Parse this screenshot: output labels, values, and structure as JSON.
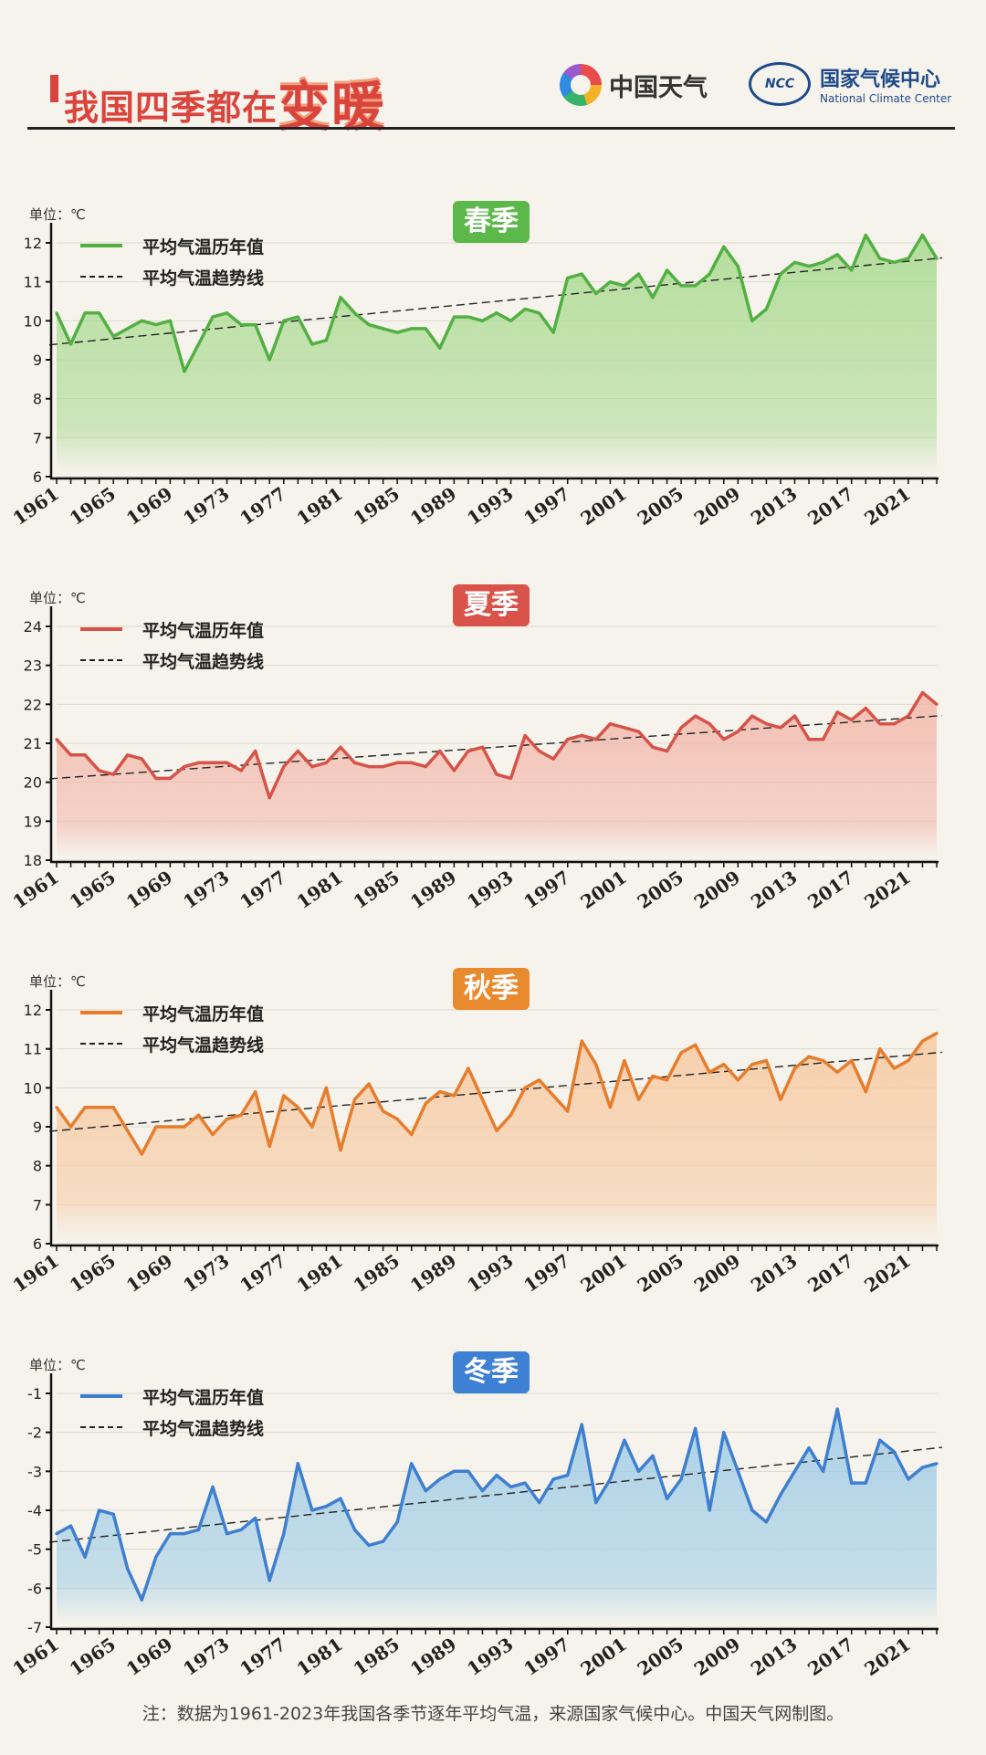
{
  "header": {
    "title_main": "我国四季都在",
    "title_big": "变暖",
    "brand1_name": "中国天气",
    "brand2_logo": "NCC",
    "brand2_cn": "国家气候中心",
    "brand2_en": "National Climate Center"
  },
  "footer": {
    "note": "注：数据为1961-2023年我国各季节逐年平均气温，来源国家气候中心。中国天气网制图。"
  },
  "chart_data": [
    {
      "type": "line",
      "title": "春季",
      "unit_label": "单位：℃",
      "color": "#52b043",
      "fill_color": "#a9da8f",
      "badge_color": "#5cb84a",
      "legend": [
        "平均气温历年值",
        "平均气温趋势线"
      ],
      "ylim": [
        6,
        12
      ],
      "yticks": [
        6,
        7,
        8,
        9,
        10,
        11,
        12
      ],
      "xlim": [
        1961,
        2023
      ],
      "xticks": [
        1961,
        1965,
        1969,
        1973,
        1977,
        1981,
        1985,
        1989,
        1993,
        1997,
        2001,
        2005,
        2009,
        2013,
        2017,
        2021
      ],
      "x": [
        1961,
        1962,
        1963,
        1964,
        1965,
        1966,
        1967,
        1968,
        1969,
        1970,
        1971,
        1972,
        1973,
        1974,
        1975,
        1976,
        1977,
        1978,
        1979,
        1980,
        1981,
        1982,
        1983,
        1984,
        1985,
        1986,
        1987,
        1988,
        1989,
        1990,
        1991,
        1992,
        1993,
        1994,
        1995,
        1996,
        1997,
        1998,
        1999,
        2000,
        2001,
        2002,
        2003,
        2004,
        2005,
        2006,
        2007,
        2008,
        2009,
        2010,
        2011,
        2012,
        2013,
        2014,
        2015,
        2016,
        2017,
        2018,
        2019,
        2020,
        2021,
        2022,
        2023
      ],
      "values": [
        10.2,
        9.4,
        10.2,
        10.2,
        9.6,
        9.8,
        10.0,
        9.9,
        10.0,
        8.7,
        9.4,
        10.1,
        10.2,
        9.9,
        9.9,
        9.0,
        10.0,
        10.1,
        9.4,
        9.5,
        10.6,
        10.2,
        9.9,
        9.8,
        9.7,
        9.8,
        9.8,
        9.3,
        10.1,
        10.1,
        10.0,
        10.2,
        10.0,
        10.3,
        10.2,
        9.7,
        11.1,
        11.2,
        10.7,
        11.0,
        10.9,
        11.2,
        10.6,
        11.3,
        10.9,
        10.9,
        11.2,
        11.9,
        11.4,
        10.0,
        10.3,
        11.2,
        11.5,
        11.4,
        11.5,
        11.7,
        11.3,
        12.2,
        11.6,
        11.5,
        11.6,
        12.2,
        11.6
      ],
      "trend": [
        9.4,
        11.6
      ]
    },
    {
      "type": "line",
      "title": "夏季",
      "unit_label": "单位：℃",
      "color": "#d65349",
      "fill_color": "#f3b7aa",
      "badge_color": "#d9534a",
      "legend": [
        "平均气温历年值",
        "平均气温趋势线"
      ],
      "ylim": [
        18,
        24
      ],
      "yticks": [
        18,
        19,
        20,
        21,
        22,
        23,
        24
      ],
      "xlim": [
        1961,
        2023
      ],
      "xticks": [
        1961,
        1965,
        1969,
        1973,
        1977,
        1981,
        1985,
        1989,
        1993,
        1997,
        2001,
        2005,
        2009,
        2013,
        2017,
        2021
      ],
      "x": [
        1961,
        1962,
        1963,
        1964,
        1965,
        1966,
        1967,
        1968,
        1969,
        1970,
        1971,
        1972,
        1973,
        1974,
        1975,
        1976,
        1977,
        1978,
        1979,
        1980,
        1981,
        1982,
        1983,
        1984,
        1985,
        1986,
        1987,
        1988,
        1989,
        1990,
        1991,
        1992,
        1993,
        1994,
        1995,
        1996,
        1997,
        1998,
        1999,
        2000,
        2001,
        2002,
        2003,
        2004,
        2005,
        2006,
        2007,
        2008,
        2009,
        2010,
        2011,
        2012,
        2013,
        2014,
        2015,
        2016,
        2017,
        2018,
        2019,
        2020,
        2021,
        2022,
        2023
      ],
      "values": [
        21.1,
        20.7,
        20.7,
        20.3,
        20.2,
        20.7,
        20.6,
        20.1,
        20.1,
        20.4,
        20.5,
        20.5,
        20.5,
        20.3,
        20.8,
        19.6,
        20.4,
        20.8,
        20.4,
        20.5,
        20.9,
        20.5,
        20.4,
        20.4,
        20.5,
        20.5,
        20.4,
        20.8,
        20.3,
        20.8,
        20.9,
        20.2,
        20.1,
        21.2,
        20.8,
        20.6,
        21.1,
        21.2,
        21.1,
        21.5,
        21.4,
        21.3,
        20.9,
        20.8,
        21.4,
        21.7,
        21.5,
        21.1,
        21.3,
        21.7,
        21.5,
        21.4,
        21.7,
        21.1,
        21.1,
        21.8,
        21.6,
        21.9,
        21.5,
        21.5,
        21.7,
        22.3,
        22.0
      ],
      "trend": [
        20.1,
        21.7
      ]
    },
    {
      "type": "line",
      "title": "秋季",
      "unit_label": "单位：℃",
      "color": "#e67d2c",
      "fill_color": "#f7c9a0",
      "badge_color": "#e98a2f",
      "legend": [
        "平均气温历年值",
        "平均气温趋势线"
      ],
      "ylim": [
        6,
        12
      ],
      "yticks": [
        6,
        7,
        8,
        9,
        10,
        11,
        12
      ],
      "xlim": [
        1961,
        2023
      ],
      "xticks": [
        1961,
        1965,
        1969,
        1973,
        1977,
        1981,
        1985,
        1989,
        1993,
        1997,
        2001,
        2005,
        2009,
        2013,
        2017,
        2021
      ],
      "x": [
        1961,
        1962,
        1963,
        1964,
        1965,
        1966,
        1967,
        1968,
        1969,
        1970,
        1971,
        1972,
        1973,
        1974,
        1975,
        1976,
        1977,
        1978,
        1979,
        1980,
        1981,
        1982,
        1983,
        1984,
        1985,
        1986,
        1987,
        1988,
        1989,
        1990,
        1991,
        1992,
        1993,
        1994,
        1995,
        1996,
        1997,
        1998,
        1999,
        2000,
        2001,
        2002,
        2003,
        2004,
        2005,
        2006,
        2007,
        2008,
        2009,
        2010,
        2011,
        2012,
        2013,
        2014,
        2015,
        2016,
        2017,
        2018,
        2019,
        2020,
        2021,
        2022,
        2023
      ],
      "values": [
        9.5,
        9.0,
        9.5,
        9.5,
        9.5,
        8.9,
        8.3,
        9.0,
        9.0,
        9.0,
        9.3,
        8.8,
        9.2,
        9.3,
        9.9,
        8.5,
        9.8,
        9.5,
        9.0,
        10.0,
        8.4,
        9.7,
        10.1,
        9.4,
        9.2,
        8.8,
        9.6,
        9.9,
        9.8,
        10.5,
        9.7,
        8.9,
        9.3,
        10.0,
        10.2,
        9.8,
        9.4,
        11.2,
        10.6,
        9.5,
        10.7,
        9.7,
        10.3,
        10.2,
        10.9,
        11.1,
        10.4,
        10.6,
        10.2,
        10.6,
        10.7,
        9.7,
        10.5,
        10.8,
        10.7,
        10.4,
        10.7,
        9.9,
        11.0,
        10.5,
        10.7,
        11.2,
        11.4
      ],
      "trend": [
        8.9,
        10.9
      ]
    },
    {
      "type": "line",
      "title": "冬季",
      "unit_label": "单位：℃",
      "color": "#3e7fd0",
      "fill_color": "#9ecce6",
      "badge_color": "#3d80d4",
      "legend": [
        "平均气温历年值",
        "平均气温趋势线"
      ],
      "ylim": [
        -7,
        -1
      ],
      "yticks": [
        -7,
        -6,
        -5,
        -4,
        -3,
        -2,
        -1
      ],
      "xlim": [
        1961,
        2023
      ],
      "xticks": [
        1961,
        1965,
        1969,
        1973,
        1977,
        1981,
        1985,
        1989,
        1993,
        1997,
        2001,
        2005,
        2009,
        2013,
        2017,
        2021
      ],
      "x": [
        1961,
        1962,
        1963,
        1964,
        1965,
        1966,
        1967,
        1968,
        1969,
        1970,
        1971,
        1972,
        1973,
        1974,
        1975,
        1976,
        1977,
        1978,
        1979,
        1980,
        1981,
        1982,
        1983,
        1984,
        1985,
        1986,
        1987,
        1988,
        1989,
        1990,
        1991,
        1992,
        1993,
        1994,
        1995,
        1996,
        1997,
        1998,
        1999,
        2000,
        2001,
        2002,
        2003,
        2004,
        2005,
        2006,
        2007,
        2008,
        2009,
        2010,
        2011,
        2012,
        2013,
        2014,
        2015,
        2016,
        2017,
        2018,
        2019,
        2020,
        2021,
        2022,
        2023
      ],
      "values": [
        -4.6,
        -4.4,
        -5.2,
        -4.0,
        -4.1,
        -5.5,
        -6.3,
        -5.2,
        -4.6,
        -4.6,
        -4.5,
        -3.4,
        -4.6,
        -4.5,
        -4.2,
        -5.8,
        -4.6,
        -2.8,
        -4.0,
        -3.9,
        -3.7,
        -4.5,
        -4.9,
        -4.8,
        -4.3,
        -2.8,
        -3.5,
        -3.2,
        -3.0,
        -3.0,
        -3.5,
        -3.1,
        -3.4,
        -3.3,
        -3.8,
        -3.2,
        -3.1,
        -1.8,
        -3.8,
        -3.2,
        -2.2,
        -3.0,
        -2.6,
        -3.7,
        -3.2,
        -1.9,
        -4.0,
        -2.0,
        -3.0,
        -4.0,
        -4.3,
        -3.6,
        -3.0,
        -2.4,
        -3.0,
        -1.4,
        -3.3,
        -3.3,
        -2.2,
        -2.5,
        -3.2,
        -2.9,
        -2.8
      ],
      "trend": [
        -4.8,
        -2.4
      ]
    }
  ]
}
